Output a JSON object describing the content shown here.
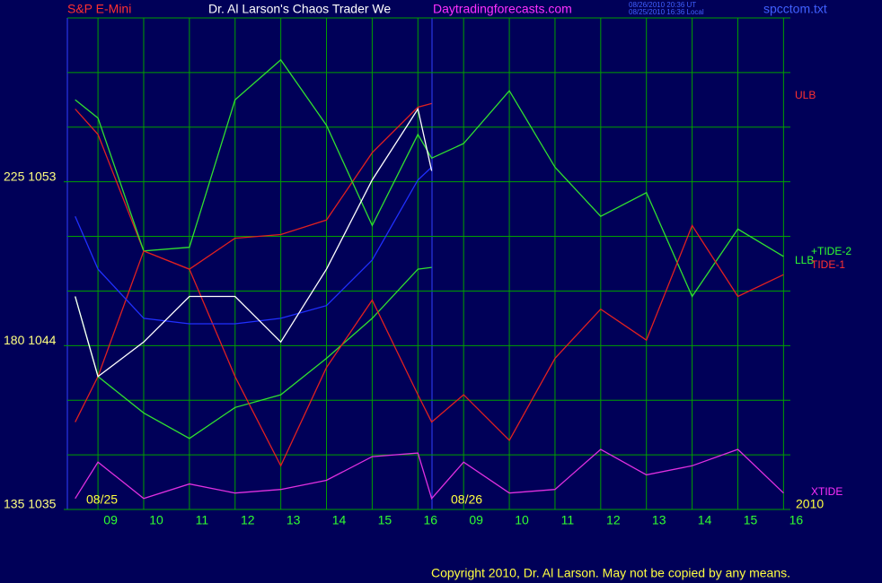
{
  "chart_data": {
    "type": "line",
    "title": "Dr. Al Larson's Chaos Trader We",
    "subtitle": "S&P E-Mini",
    "site": "Daytradingforecasts.com",
    "timestamps": [
      "08/26/2010 20:36 UT",
      "08/25/2010 16:36 Local"
    ],
    "file": "spcctom.txt",
    "copyright": "Copyright 2010, Dr. Al Larson. May not be copied by any means.",
    "annotations": [
      "08/25",
      "08/26",
      "2010"
    ],
    "x": [
      -0.5,
      0,
      1,
      2,
      3,
      4,
      5,
      6,
      7,
      7.3,
      8,
      9,
      10,
      11,
      12,
      13,
      14,
      15
    ],
    "xlim": [
      -0.67,
      15.15
    ],
    "xticks": [
      {
        "value": 0,
        "label": "09"
      },
      {
        "value": 1,
        "label": "10"
      },
      {
        "value": 2,
        "label": "11"
      },
      {
        "value": 3,
        "label": "12"
      },
      {
        "value": 4,
        "label": "13"
      },
      {
        "value": 5,
        "label": "14"
      },
      {
        "value": 6,
        "label": "15"
      },
      {
        "value": 7,
        "label": "16"
      },
      {
        "value": 8,
        "label": "09"
      },
      {
        "value": 9,
        "label": "10"
      },
      {
        "value": 10,
        "label": "11"
      },
      {
        "value": 11,
        "label": "12"
      },
      {
        "value": 12,
        "label": "13"
      },
      {
        "value": 13,
        "label": "14"
      },
      {
        "value": 14,
        "label": "15"
      },
      {
        "value": 15,
        "label": "16"
      }
    ],
    "ylim": [
      1035,
      1062
    ],
    "yticks": [
      {
        "value": 1035,
        "label": "135 1035"
      },
      {
        "value": 1044,
        "label": "180 1044"
      },
      {
        "value": 1053,
        "label": "225 1053"
      }
    ],
    "ygrid": [
      1035,
      1038,
      1041,
      1044,
      1047,
      1050,
      1053,
      1056,
      1059,
      1062
    ],
    "grid": true,
    "series": [
      {
        "name": "ULB",
        "color": "#e02020",
        "values": [
          1057.0,
          1055.6,
          1049.2,
          1048.2,
          1049.9,
          1050.1,
          1050.9,
          1054.6,
          1057.1,
          1057.3,
          null,
          null,
          null,
          null,
          null,
          null,
          null,
          null
        ]
      },
      {
        "name": "+TIDE-2",
        "color": "#30e030",
        "values": [
          1057.5,
          1056.5,
          1049.2,
          1049.4,
          1057.5,
          1059.7,
          1056.1,
          1050.6,
          1055.6,
          1054.3,
          1055.1,
          1058.0,
          1053.8,
          1051.1,
          1052.4,
          1046.7,
          1050.4,
          1048.9
        ]
      },
      {
        "name": "LLB",
        "color": "#30e030",
        "values": [
          1046.7,
          1042.3,
          1040.3,
          1038.9,
          1040.6,
          1041.3,
          1043.3,
          1045.5,
          1048.2,
          1048.3,
          null,
          null,
          null,
          null,
          null,
          null,
          null,
          null
        ]
      },
      {
        "name": "TIDE-1",
        "color": "#e02020",
        "values": [
          1039.8,
          1042.3,
          1049.2,
          1048.2,
          1042.3,
          1037.4,
          1042.8,
          1046.5,
          1041.3,
          1039.8,
          1041.3,
          1038.8,
          1043.3,
          1046.0,
          1044.3,
          1050.6,
          1046.7,
          1047.9
        ]
      },
      {
        "name": "XTIDE",
        "color": "#e030e0",
        "values": [
          1035.6,
          1037.6,
          1035.6,
          1036.4,
          1035.9,
          1036.1,
          1036.6,
          1037.9,
          1038.1,
          1035.6,
          1037.6,
          1035.9,
          1036.1,
          1038.3,
          1036.9,
          1037.4,
          1038.3,
          1035.9
        ]
      },
      {
        "color": "#2030ff",
        "values": [
          1051.1,
          1048.2,
          1045.5,
          1045.2,
          1045.2,
          1045.5,
          1046.2,
          1048.7,
          1053.1,
          1053.8,
          null,
          null,
          null,
          null,
          null,
          null,
          null,
          null
        ]
      },
      {
        "color": "#ffffff",
        "values": [
          1046.7,
          1042.3,
          1044.2,
          1046.7,
          1046.7,
          1044.2,
          1048.2,
          1053.1,
          1057.0,
          1053.6,
          null,
          null,
          null,
          null,
          null,
          null,
          null,
          null
        ]
      }
    ]
  }
}
